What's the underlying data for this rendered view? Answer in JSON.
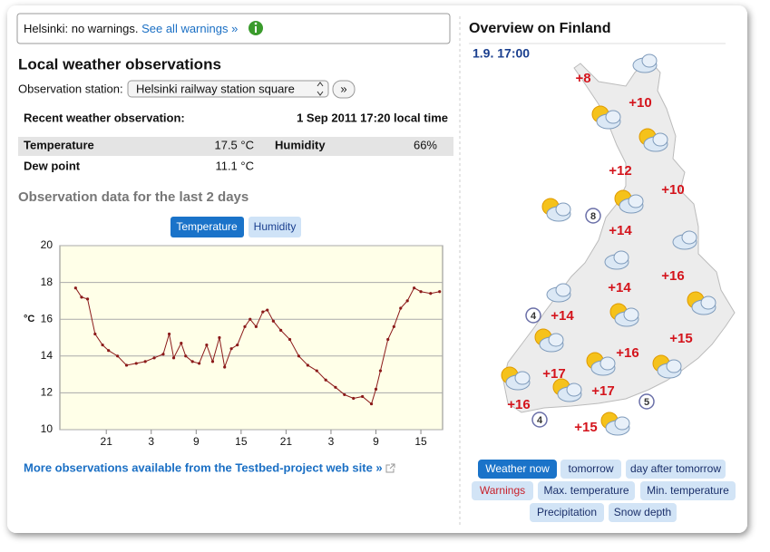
{
  "warning": {
    "text": "Helsinki: no warnings.",
    "link": "See all warnings »"
  },
  "observations": {
    "title": "Local weather observations",
    "station_label": "Observation station:",
    "station": "Helsinki railway station square",
    "go": "»",
    "recent_label": "Recent weather observation:",
    "recent_time": "1 Sep 2011 17:20 local time",
    "rows": [
      [
        "Temperature",
        "17.5 °C",
        "Humidity",
        "66%"
      ],
      [
        "Dew point",
        "11.1 °C"
      ]
    ],
    "chart_title": "Observation data for the last 2 days",
    "tabs": [
      "Temperature",
      "Humidity"
    ],
    "more_link": "More observations available from the Testbed-project web site »"
  },
  "chart_data": {
    "type": "line",
    "y_label": "°C",
    "x": [
      16.9,
      17.7,
      18.5,
      19.5,
      20.5,
      21.3,
      22.5,
      23.7,
      25.0,
      26.2,
      27.4,
      28.6,
      29.4,
      30.0,
      31.0,
      31.6,
      32.5,
      33.4,
      34.4,
      35.2,
      36.1,
      36.8,
      37.7,
      38.5,
      39.5,
      40.2,
      41.0,
      41.9,
      42.5,
      43.3,
      44.3,
      45.5,
      46.7,
      47.9,
      49.1,
      50.3,
      51.6,
      52.8,
      54.0,
      55.2,
      56.4,
      57.0,
      57.6,
      58.6,
      59.4,
      60.3,
      61.2,
      62.1,
      63.0,
      64.3,
      65.5
    ],
    "values": [
      17.7,
      17.2,
      17.1,
      15.2,
      14.6,
      14.3,
      14.0,
      13.5,
      13.6,
      13.7,
      13.9,
      14.1,
      15.2,
      13.9,
      14.7,
      14.0,
      13.7,
      13.6,
      14.6,
      13.7,
      15.0,
      13.4,
      14.4,
      14.6,
      15.6,
      16.0,
      15.6,
      16.4,
      16.5,
      15.9,
      15.4,
      14.9,
      14.0,
      13.5,
      13.2,
      12.7,
      12.3,
      11.9,
      11.7,
      11.8,
      11.4,
      12.2,
      13.2,
      14.9,
      15.6,
      16.6,
      17.0,
      17.7,
      17.5,
      17.4,
      17.5
    ],
    "color": "#8b1a1a",
    "xlim": [
      14.8,
      65.9
    ],
    "ylim": [
      10,
      20
    ],
    "xticks": [
      21,
      {
        "value": 27,
        "label": "3"
      },
      {
        "value": 33,
        "label": "9"
      },
      {
        "value": 39,
        "label": "15"
      },
      {
        "value": 45,
        "label": "21"
      },
      {
        "value": 51,
        "label": "3"
      },
      {
        "value": 57,
        "label": "9"
      },
      {
        "value": 63,
        "label": "15"
      }
    ],
    "yticks": [
      10,
      12,
      14,
      16,
      18,
      20
    ],
    "grid": true
  },
  "overview": {
    "title": "Overview on Finland",
    "time": "1.9. 17:00",
    "temperatures": [
      "+8",
      "+10",
      "+12",
      "+10",
      "+14",
      "+16",
      "+14",
      "+14",
      "+15",
      "+16",
      "+17",
      "+17",
      "+16",
      "+15"
    ],
    "wind": [
      "8",
      "4",
      "5",
      "4"
    ],
    "buttons": [
      "Weather now",
      "tomorrow",
      "day after tomorrow",
      "Warnings",
      "Max. temperature",
      "Min. temperature",
      "Precipitation",
      "Snow depth"
    ]
  }
}
